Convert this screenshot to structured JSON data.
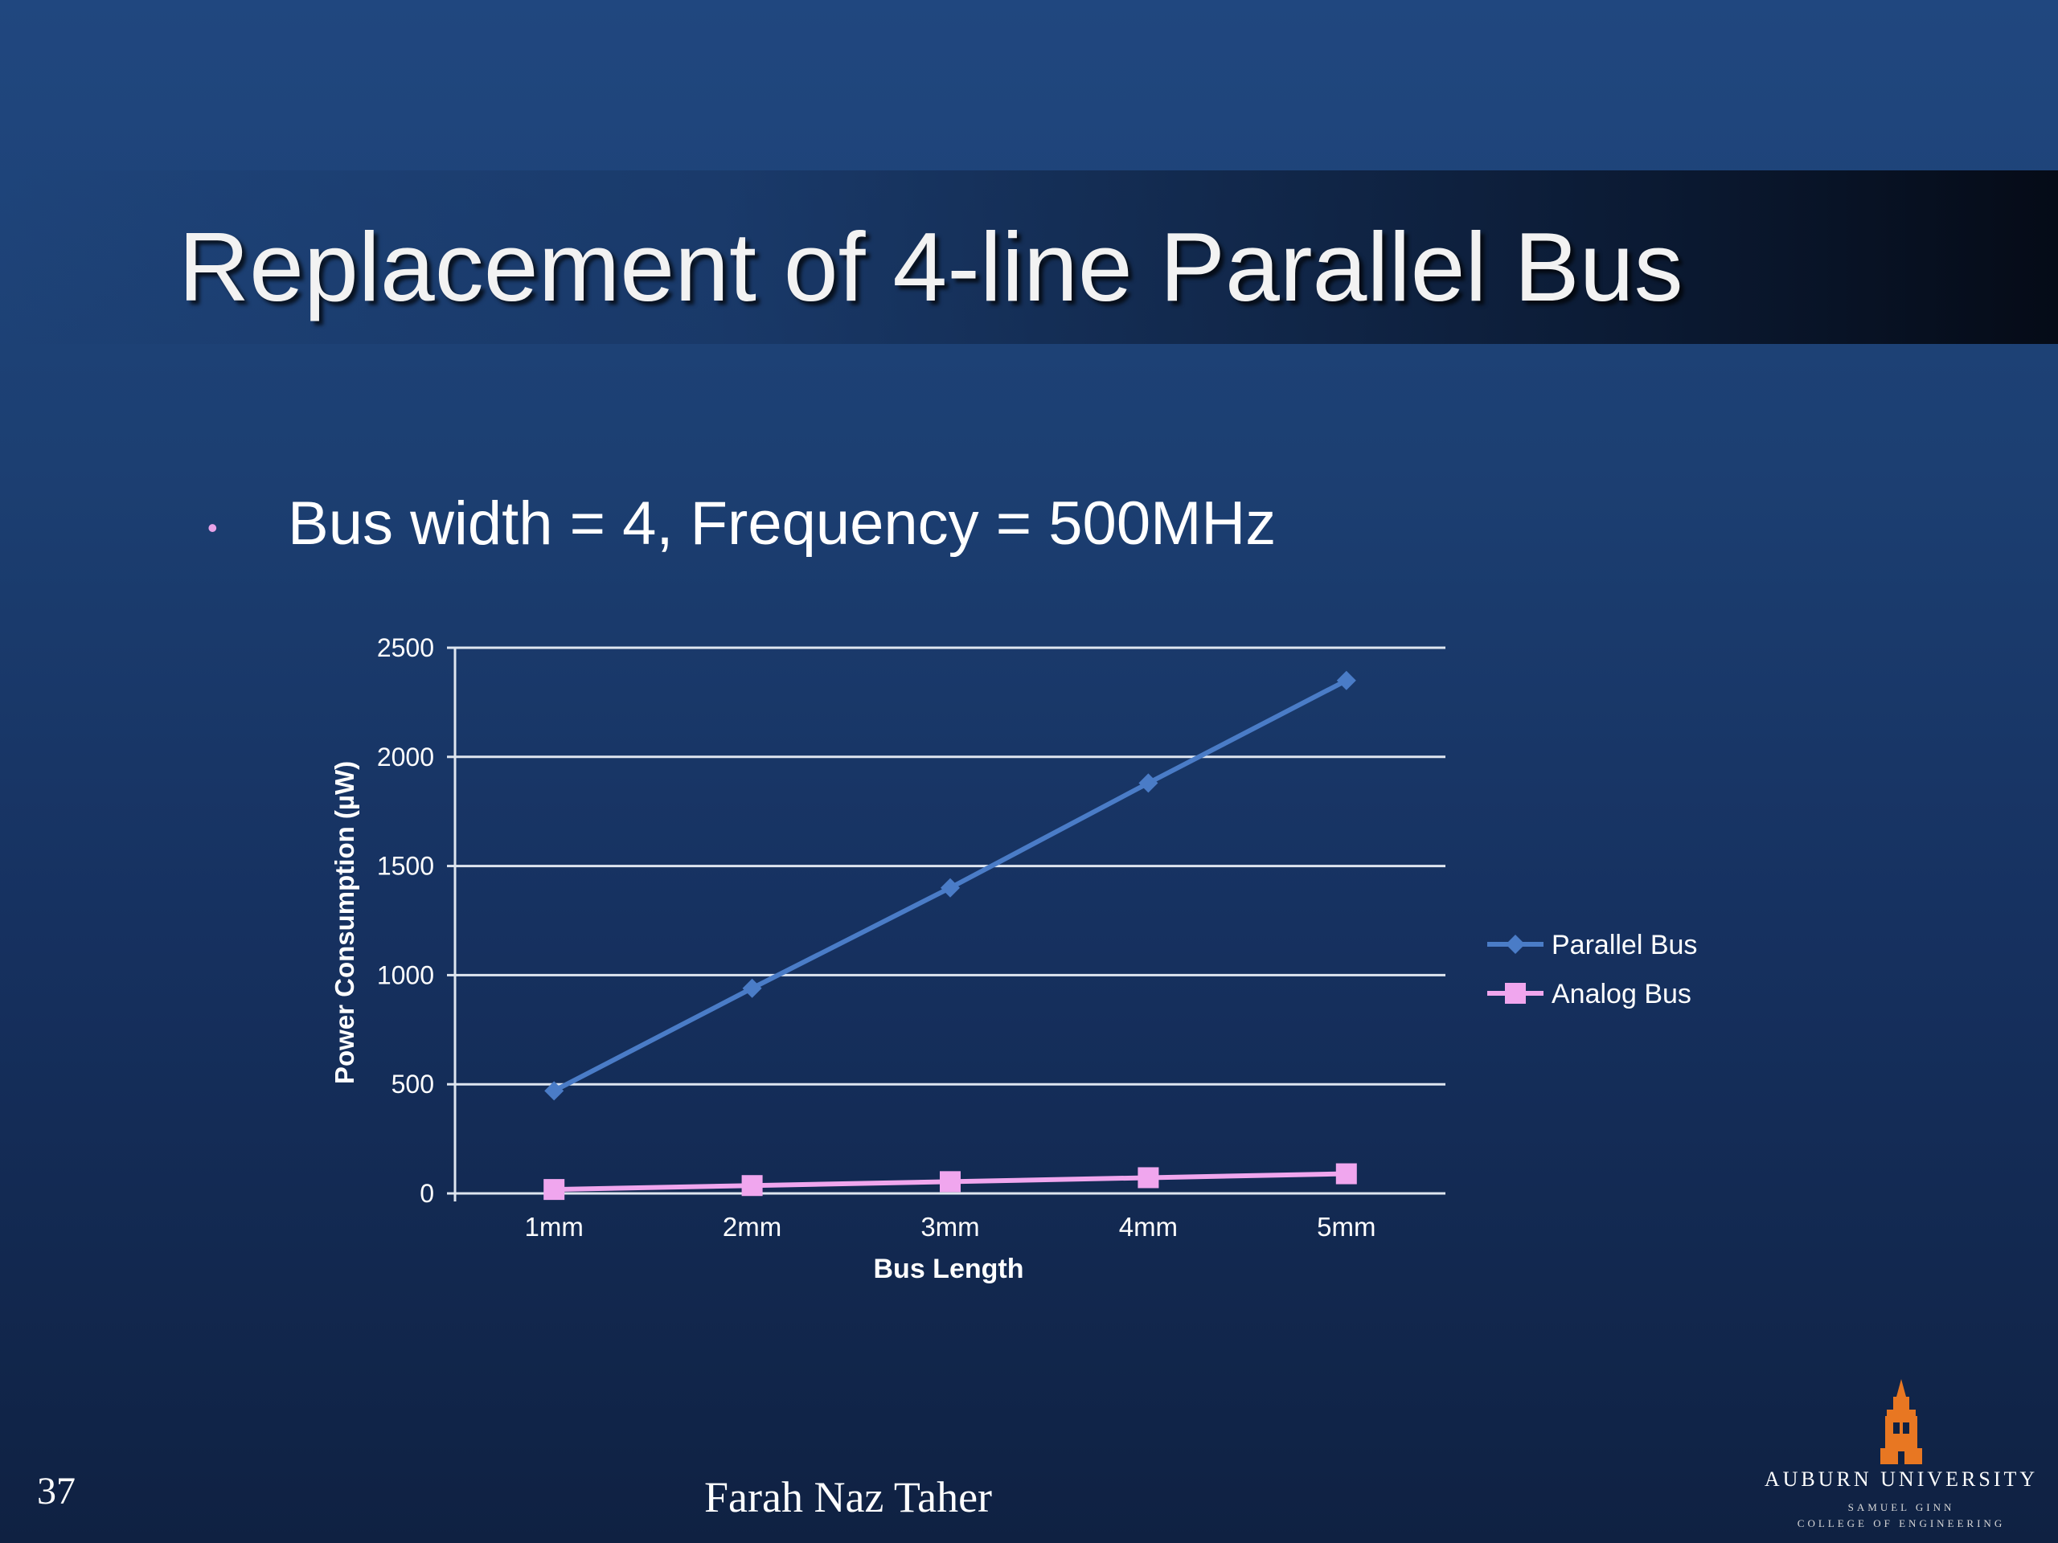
{
  "slide": {
    "title": "Replacement of 4-line Parallel Bus",
    "bullet": "Bus width = 4, Frequency = 500MHz",
    "page_number": "37",
    "author": "Farah Naz Taher",
    "logo": {
      "name": "AUBURN UNIVERSITY",
      "line1": "SAMUEL GINN",
      "line2": "COLLEGE OF ENGINEERING"
    }
  },
  "colors": {
    "parallel_bus": "#4a7cc7",
    "analog_bus": "#f0a6ee",
    "gridline": "#dfe6f0",
    "logo_orange": "#e87722"
  },
  "chart_data": {
    "type": "line",
    "categories": [
      "1mm",
      "2mm",
      "3mm",
      "4mm",
      "5mm"
    ],
    "series": [
      {
        "name": "Parallel Bus",
        "marker": "diamond",
        "values": [
          470,
          940,
          1400,
          1880,
          2350
        ]
      },
      {
        "name": "Analog Bus",
        "marker": "square",
        "values": [
          18,
          36,
          54,
          72,
          90
        ]
      }
    ],
    "yticks": [
      0,
      500,
      1000,
      1500,
      2000,
      2500
    ],
    "ylim": [
      0,
      2500
    ],
    "xlabel": "Bus Length",
    "ylabel": "Power Consumption (µW)",
    "grid": true,
    "legend": "right"
  }
}
